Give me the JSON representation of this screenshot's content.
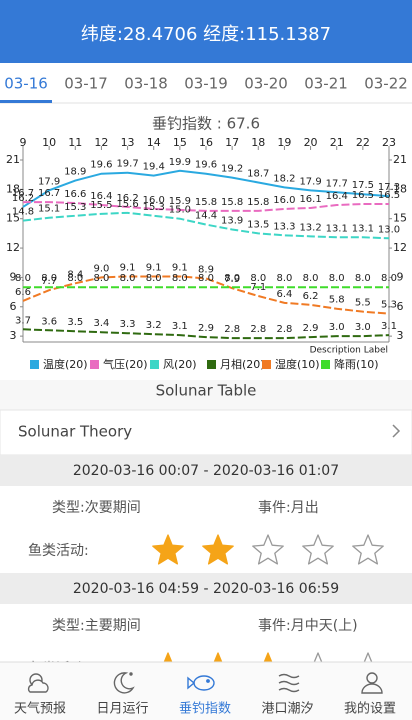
{
  "header": {
    "title": "纬度:28.4706 经度:115.1387"
  },
  "tabs": {
    "items": [
      "03-16",
      "03-17",
      "03-18",
      "03-19",
      "03-20",
      "03-21",
      "03-22"
    ],
    "active": 0
  },
  "chart_data": {
    "type": "line",
    "title": "垂钓指数 : 67.6",
    "x": [
      9,
      10,
      11,
      12,
      13,
      14,
      15,
      16,
      17,
      18,
      19,
      20,
      21,
      22,
      23
    ],
    "xlim": [
      9,
      23
    ],
    "xticks": [
      9,
      10,
      11,
      12,
      13,
      14,
      15,
      16,
      17,
      18,
      19,
      20,
      21,
      22,
      23
    ],
    "ylim": [
      2.4,
      21
    ],
    "yticks": [
      3,
      6,
      9,
      12,
      15,
      18,
      21
    ],
    "y2lim": [
      2.4,
      21
    ],
    "y2ticks": [
      3,
      6,
      9,
      12,
      15,
      18,
      21
    ],
    "grid": false,
    "legend": "bottom",
    "description": "Description Label",
    "series": [
      {
        "name": "温度(20)",
        "color": "#2aa9e0",
        "values": [
          16.2,
          17.9,
          18.9,
          19.6,
          19.7,
          19.4,
          19.9,
          19.6,
          19.2,
          18.7,
          18.2,
          17.9,
          17.7,
          17.5,
          17.3
        ],
        "value_labels": [
          "16.2",
          "17.9",
          "18.9",
          "19.6",
          "19.7",
          "19.4",
          "19.9",
          "19.6",
          "19.2",
          "18.7",
          "18.2",
          "17.9",
          "17.7",
          "17.5",
          "17.3"
        ]
      },
      {
        "name": "气压(20)",
        "color": "#e96bc0",
        "values": [
          16.7,
          16.7,
          16.6,
          16.4,
          16.2,
          16.0,
          15.9,
          15.8,
          15.8,
          15.8,
          16.0,
          16.1,
          16.4,
          16.5,
          16.5
        ],
        "value_labels": [
          "16.7",
          "16.7",
          "16.6",
          "16.4",
          "16.2",
          "16.0",
          "15.9",
          "15.8",
          "15.8",
          "15.8",
          "16.0",
          "16.1",
          "16.4",
          "16.5",
          "16.5"
        ]
      },
      {
        "name": "风(20)",
        "color": "#3dd6c6",
        "values": [
          14.8,
          15.1,
          15.3,
          15.5,
          15.6,
          15.3,
          15.0,
          14.4,
          13.9,
          13.5,
          13.3,
          13.2,
          13.1,
          13.1,
          13.0
        ],
        "value_labels": [
          "14.8",
          "15.1",
          "15.3",
          "15.5",
          "15.6",
          "15.3",
          "15.0",
          "14.4",
          "13.9",
          "13.5",
          "13.3",
          "13.2",
          "13.1",
          "13.1",
          "13.0"
        ]
      },
      {
        "name": "月相(20)",
        "color": "#2f6a10",
        "values": [
          3.7,
          3.6,
          3.5,
          3.4,
          3.3,
          3.2,
          3.1,
          2.9,
          2.8,
          2.8,
          2.8,
          2.9,
          3.0,
          3.0,
          3.1
        ],
        "value_labels": [
          "3.7",
          "3.6",
          "3.5",
          "3.4",
          "3.3",
          "3.2",
          "3.1",
          "2.9",
          "2.8",
          "2.8",
          "2.8",
          "2.9",
          "3.0",
          "3.0",
          "3.1"
        ]
      },
      {
        "name": "湿度(10)",
        "color": "#f07a24",
        "values": [
          6.6,
          7.7,
          8.4,
          9.0,
          9.1,
          9.1,
          9.1,
          8.9,
          7.9,
          7.1,
          6.4,
          6.2,
          5.8,
          5.5,
          5.3
        ],
        "value_labels": [
          "6.6",
          "7.7",
          "8.4",
          "9.0",
          "9.1",
          "9.1",
          "9.1",
          "8.9",
          "7.9",
          "7.1",
          "6.4",
          "6.2",
          "5.8",
          "5.5",
          "5.3"
        ]
      },
      {
        "name": "降雨(10)",
        "color": "#3fdc2a",
        "values": [
          8.0,
          8.0,
          8.0,
          8.0,
          8.0,
          8.0,
          8.0,
          8.0,
          8.0,
          8.0,
          8.0,
          8.0,
          8.0,
          8.0,
          8.0
        ],
        "value_labels": [
          "8.0",
          "8.0",
          "8.0",
          "8.0",
          "8.0",
          "8.0",
          "8.0",
          "8.0",
          "8.0",
          "8.0",
          "8.0",
          "8.0",
          "8.0",
          "8.0",
          "8.0"
        ]
      }
    ]
  },
  "solunar": {
    "title": "Solunar Table",
    "theory": "Solunar Theory",
    "activity_label": "鱼类活动:",
    "max_rating": 5,
    "periods": [
      {
        "time": "2020-03-16 00:07 - 2020-03-16 01:07",
        "type": "类型:次要期间",
        "event": "事件:月出",
        "rating": 2
      },
      {
        "time": "2020-03-16 04:59 - 2020-03-16 06:59",
        "type": "类型:主要期间",
        "event": "事件:月中天(上)",
        "rating": 3
      }
    ]
  },
  "nav": {
    "items": [
      "天气预报",
      "日月运行",
      "垂钓指数",
      "港口潮汐",
      "我的设置"
    ],
    "active": 2
  }
}
